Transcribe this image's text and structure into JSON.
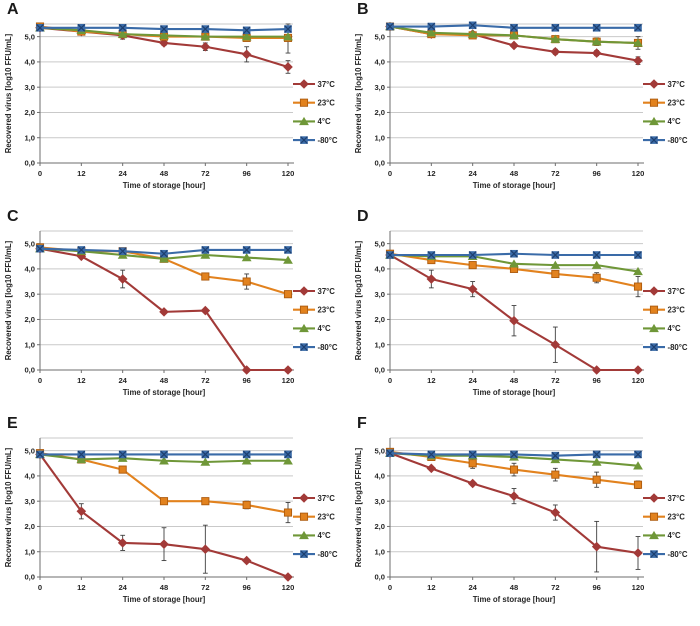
{
  "figure": {
    "description": "Six-panel line chart figure of recovered virus titer over storage time at four temperatures",
    "panel_count": 6
  },
  "style": {
    "grid_color": "#C9C9C9",
    "axis_color": "#6E6E6E",
    "error_color": "#3F3F3F",
    "background": "#FFFFFF",
    "blue_x_stroke": "#1E3F6E",
    "orange_stroke": "#AD5B0E"
  },
  "chart_data": [
    {
      "type": "line",
      "panel": "A",
      "xlabel": "Time of storage [hour]",
      "ylabel": "Recovered virus [log10 FFU/mL]",
      "categories": [
        "0",
        "12",
        "24",
        "48",
        "72",
        "96",
        "120"
      ],
      "yticks": [
        0,
        1,
        2,
        3,
        4,
        5
      ],
      "ytick_labels": [
        "0,0",
        "1,0",
        "2,0",
        "3,0",
        "4,0",
        "5,0"
      ],
      "ylim": [
        0,
        5.5
      ],
      "grid": true,
      "legend_position": "right",
      "series": [
        {
          "name": "37°C",
          "color": "#A23A38",
          "marker": "diamond",
          "values": [
            5.35,
            5.2,
            5.05,
            4.75,
            4.6,
            4.3,
            3.8
          ],
          "errors": [
            0,
            0,
            0.15,
            0.1,
            0.15,
            0.3,
            0.25
          ]
        },
        {
          "name": "23°C",
          "color": "#E2821E",
          "marker": "square",
          "values": [
            5.4,
            5.2,
            5.1,
            5.0,
            5.0,
            4.95,
            4.95
          ],
          "errors": [
            0,
            0,
            0,
            0.15,
            0,
            0,
            0.6
          ]
        },
        {
          "name": "4°C",
          "color": "#6F9738",
          "marker": "triangle",
          "values": [
            5.35,
            5.25,
            5.1,
            5.05,
            5.0,
            5.0,
            5.0
          ],
          "errors": [
            0,
            0,
            0,
            0,
            0,
            0,
            0
          ]
        },
        {
          "name": "-80°C",
          "color": "#3A6BA8",
          "marker": "square-x",
          "values": [
            5.35,
            5.35,
            5.35,
            5.3,
            5.3,
            5.25,
            5.3
          ],
          "errors": [
            0,
            0,
            0,
            0,
            0,
            0,
            0
          ]
        }
      ]
    },
    {
      "type": "line",
      "panel": "B",
      "xlabel": "Time of storage [hour]",
      "ylabel": "Recovered viurs [log10 FFU/mL]",
      "categories": [
        "0",
        "12",
        "24",
        "48",
        "72",
        "96",
        "120"
      ],
      "yticks": [
        0,
        1,
        2,
        3,
        4,
        5
      ],
      "ytick_labels": [
        "0,0",
        "1,0",
        "2,0",
        "3,0",
        "4,0",
        "5,0"
      ],
      "ylim": [
        0,
        5.5
      ],
      "grid": true,
      "legend_position": "right",
      "series": [
        {
          "name": "37°C",
          "color": "#A23A38",
          "marker": "diamond",
          "values": [
            5.4,
            5.1,
            5.1,
            4.65,
            4.4,
            4.35,
            4.05
          ],
          "errors": [
            0,
            0,
            0,
            0,
            0.1,
            0.1,
            0.15
          ]
        },
        {
          "name": "23°C",
          "color": "#E2821E",
          "marker": "square",
          "values": [
            5.4,
            5.1,
            5.05,
            5.05,
            4.9,
            4.8,
            4.75
          ],
          "errors": [
            0,
            0,
            0,
            0,
            0,
            0,
            0
          ]
        },
        {
          "name": "4°C",
          "color": "#6F9738",
          "marker": "triangle",
          "values": [
            5.4,
            5.15,
            5.1,
            5.05,
            4.9,
            4.8,
            4.75
          ],
          "errors": [
            0,
            0,
            0,
            0,
            0,
            0.15,
            0.25
          ]
        },
        {
          "name": "-80°C",
          "color": "#3A6BA8",
          "marker": "square-x",
          "values": [
            5.4,
            5.4,
            5.45,
            5.35,
            5.35,
            5.35,
            5.35
          ],
          "errors": [
            0,
            0,
            0,
            0,
            0,
            0,
            0
          ]
        }
      ]
    },
    {
      "type": "line",
      "panel": "C",
      "xlabel": "Time of storage [hour]",
      "ylabel": "Recovered virus [log10 FFU/mL]",
      "categories": [
        "0",
        "12",
        "24",
        "48",
        "72",
        "96",
        "120"
      ],
      "yticks": [
        0,
        1,
        2,
        3,
        4,
        5
      ],
      "ytick_labels": [
        "0,0",
        "1,0",
        "2,0",
        "3,0",
        "4,0",
        "5,0"
      ],
      "ylim": [
        0,
        5.5
      ],
      "grid": true,
      "legend_position": "right",
      "series": [
        {
          "name": "37°C",
          "color": "#A23A38",
          "marker": "diamond",
          "values": [
            4.8,
            4.5,
            3.6,
            2.3,
            2.35,
            0.0,
            0.0
          ],
          "errors": [
            0,
            0,
            0.35,
            0,
            0,
            0,
            0
          ]
        },
        {
          "name": "23°C",
          "color": "#E2821E",
          "marker": "square",
          "values": [
            4.85,
            4.7,
            4.7,
            4.4,
            3.7,
            3.5,
            3.0
          ],
          "errors": [
            0,
            0,
            0,
            0,
            0,
            0.3,
            0
          ]
        },
        {
          "name": "4°C",
          "color": "#6F9738",
          "marker": "triangle",
          "values": [
            4.8,
            4.7,
            4.55,
            4.4,
            4.55,
            4.45,
            4.35
          ],
          "errors": [
            0,
            0,
            0,
            0,
            0,
            0,
            0
          ]
        },
        {
          "name": "-80°C",
          "color": "#3A6BA8",
          "marker": "square-x",
          "values": [
            4.8,
            4.75,
            4.7,
            4.6,
            4.75,
            4.75,
            4.75
          ],
          "errors": [
            0,
            0,
            0,
            0,
            0,
            0,
            0
          ]
        }
      ]
    },
    {
      "type": "line",
      "panel": "D",
      "xlabel": "Time of storage [hour]",
      "ylabel": "Recovered virus [log10 FFU/mL]",
      "categories": [
        "0",
        "12",
        "24",
        "48",
        "72",
        "96",
        "120"
      ],
      "yticks": [
        0,
        1,
        2,
        3,
        4,
        5
      ],
      "ytick_labels": [
        "0,0",
        "1,0",
        "2,0",
        "3,0",
        "4,0",
        "5,0"
      ],
      "ylim": [
        0,
        5.5
      ],
      "grid": true,
      "legend_position": "right",
      "series": [
        {
          "name": "37°C",
          "color": "#A23A38",
          "marker": "diamond",
          "values": [
            4.55,
            3.6,
            3.2,
            1.95,
            1.0,
            0.0,
            0.0
          ],
          "errors": [
            0,
            0.35,
            0.3,
            0.6,
            0.7,
            0,
            0
          ]
        },
        {
          "name": "23°C",
          "color": "#E2821E",
          "marker": "square",
          "values": [
            4.6,
            4.35,
            4.15,
            4.0,
            3.8,
            3.65,
            3.3
          ],
          "errors": [
            0,
            0,
            0,
            0,
            0,
            0.2,
            0.4
          ]
        },
        {
          "name": "4°C",
          "color": "#6F9738",
          "marker": "triangle",
          "values": [
            4.55,
            4.5,
            4.5,
            4.2,
            4.15,
            4.15,
            3.9
          ],
          "errors": [
            0,
            0,
            0,
            0,
            0,
            0,
            0
          ]
        },
        {
          "name": "-80°C",
          "color": "#3A6BA8",
          "marker": "square-x",
          "values": [
            4.55,
            4.55,
            4.55,
            4.6,
            4.55,
            4.55,
            4.55
          ],
          "errors": [
            0,
            0,
            0,
            0,
            0,
            0,
            0
          ]
        }
      ]
    },
    {
      "type": "line",
      "panel": "E",
      "xlabel": "Time of storage [hour]",
      "ylabel": "Recovered virus [log10 FFU/mL]",
      "categories": [
        "0",
        "12",
        "24",
        "48",
        "72",
        "96",
        "120"
      ],
      "yticks": [
        0,
        1,
        2,
        3,
        4,
        5
      ],
      "ytick_labels": [
        "0,0",
        "1,0",
        "2,0",
        "3,0",
        "4,0",
        "5,0"
      ],
      "ylim": [
        0,
        5.5
      ],
      "grid": true,
      "legend_position": "right",
      "series": [
        {
          "name": "37°C",
          "color": "#A23A38",
          "marker": "diamond",
          "values": [
            4.85,
            2.6,
            1.35,
            1.3,
            1.1,
            0.65,
            0.0
          ],
          "errors": [
            0,
            0.3,
            0.3,
            0.65,
            0.95,
            0,
            0
          ]
        },
        {
          "name": "23°C",
          "color": "#E2821E",
          "marker": "square",
          "values": [
            4.9,
            4.65,
            4.25,
            3.0,
            3.0,
            2.85,
            2.55
          ],
          "errors": [
            0,
            0,
            0,
            0,
            0,
            0.15,
            0.4
          ]
        },
        {
          "name": "4°C",
          "color": "#6F9738",
          "marker": "triangle",
          "values": [
            4.85,
            4.65,
            4.7,
            4.6,
            4.55,
            4.6,
            4.6
          ],
          "errors": [
            0,
            0,
            0,
            0,
            0,
            0,
            0
          ]
        },
        {
          "name": "-80°C",
          "color": "#3A6BA8",
          "marker": "square-x",
          "values": [
            4.85,
            4.85,
            4.85,
            4.85,
            4.85,
            4.85,
            4.85
          ],
          "errors": [
            0,
            0,
            0,
            0,
            0,
            0,
            0
          ]
        }
      ]
    },
    {
      "type": "line",
      "panel": "F",
      "xlabel": "Time of storage [hour]",
      "ylabel": "Recovered virus [log10 FFU/mL]",
      "categories": [
        "0",
        "12",
        "24",
        "48",
        "72",
        "96",
        "120"
      ],
      "yticks": [
        0,
        1,
        2,
        3,
        4,
        5
      ],
      "ytick_labels": [
        "0,0",
        "1,0",
        "2,0",
        "3,0",
        "4,0",
        "5,0"
      ],
      "ylim": [
        0,
        5.5
      ],
      "grid": true,
      "legend_position": "right",
      "series": [
        {
          "name": "37°C",
          "color": "#A23A38",
          "marker": "diamond",
          "values": [
            4.9,
            4.3,
            3.7,
            3.2,
            2.55,
            1.2,
            0.95
          ],
          "errors": [
            0,
            0,
            0,
            0.3,
            0.3,
            1.0,
            0.65
          ]
        },
        {
          "name": "23°C",
          "color": "#E2821E",
          "marker": "square",
          "values": [
            4.95,
            4.75,
            4.5,
            4.25,
            4.05,
            3.85,
            3.65
          ],
          "errors": [
            0,
            0,
            0.2,
            0.25,
            0.25,
            0.3,
            0.15
          ]
        },
        {
          "name": "4°C",
          "color": "#6F9738",
          "marker": "triangle",
          "values": [
            4.9,
            4.8,
            4.8,
            4.75,
            4.65,
            4.55,
            4.4
          ],
          "errors": [
            0,
            0,
            0,
            0.1,
            0,
            0,
            0
          ]
        },
        {
          "name": "-80°C",
          "color": "#3A6BA8",
          "marker": "square-x",
          "values": [
            4.9,
            4.85,
            4.85,
            4.85,
            4.8,
            4.85,
            4.85
          ],
          "errors": [
            0,
            0,
            0,
            0,
            0,
            0,
            0
          ]
        }
      ]
    }
  ]
}
